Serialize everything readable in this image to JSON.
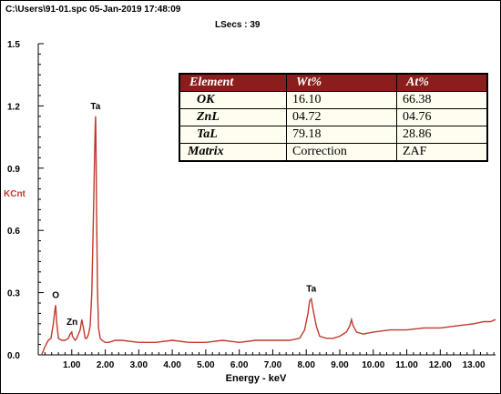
{
  "header": {
    "file_line": "C:\\Users\\91-01.spc  05-Jan-2019 17:48:09",
    "lsecs": "LSecs :  39"
  },
  "table": {
    "headers": [
      "Element",
      "Wt%",
      "At%"
    ],
    "rows": [
      {
        "element": "OK",
        "wt": "16.10",
        "at": "66.38"
      },
      {
        "element": "ZnL",
        "wt": "04.72",
        "at": "04.76"
      },
      {
        "element": "TaL",
        "wt": "79.18",
        "at": "28.86"
      },
      {
        "element": "Matrix",
        "wt": "Correction",
        "at": "ZAF"
      }
    ]
  },
  "chart_data": {
    "type": "line",
    "xlabel": "Energy - keV",
    "ylabel": "KCnt",
    "xlim": [
      0,
      13.65
    ],
    "ylim": [
      0,
      1.5
    ],
    "x_ticks": [
      "1.00",
      "2.00",
      "3.00",
      "4.00",
      "5.00",
      "6.00",
      "7.00",
      "8.00",
      "9.00",
      "10.00",
      "11.00",
      "12.00",
      "13.00"
    ],
    "y_ticks": [
      "0.0",
      "0.3",
      "0.6",
      "0.9",
      "1.2",
      "1.5"
    ],
    "line_color": "#c0392b",
    "peak_labels": [
      {
        "label": "O",
        "x": 0.52,
        "y": 0.24
      },
      {
        "label": "Zn",
        "x": 1.01,
        "y": 0.11
      },
      {
        "label": "Ta",
        "x": 1.71,
        "y": 1.15
      },
      {
        "label": "Ta",
        "x": 8.15,
        "y": 0.27
      }
    ],
    "series": [
      {
        "x": [
          0.1,
          0.2,
          0.3,
          0.38,
          0.45,
          0.5,
          0.52,
          0.55,
          0.6,
          0.7,
          0.8,
          0.9,
          0.95,
          1.0,
          1.02,
          1.06,
          1.1,
          1.15,
          1.2,
          1.25,
          1.3,
          1.35,
          1.4,
          1.45,
          1.5,
          1.55,
          1.6,
          1.65,
          1.68,
          1.7,
          1.71,
          1.72,
          1.74,
          1.77,
          1.8,
          1.85,
          1.9,
          2.0,
          2.1,
          2.3,
          2.5,
          3.0,
          3.5,
          4.0,
          4.5,
          5.0,
          5.5,
          6.0,
          6.5,
          7.0,
          7.5,
          7.8,
          7.95,
          8.05,
          8.1,
          8.15,
          8.2,
          8.3,
          8.4,
          8.6,
          8.8,
          9.0,
          9.2,
          9.3,
          9.35,
          9.4,
          9.5,
          9.7,
          10.0,
          10.5,
          11.0,
          11.5,
          12.0,
          12.5,
          13.0,
          13.3,
          13.5,
          13.65
        ],
        "y": [
          0.0,
          0.04,
          0.07,
          0.08,
          0.15,
          0.22,
          0.24,
          0.16,
          0.08,
          0.07,
          0.07,
          0.08,
          0.1,
          0.11,
          0.09,
          0.08,
          0.07,
          0.08,
          0.1,
          0.12,
          0.17,
          0.13,
          0.08,
          0.08,
          0.1,
          0.14,
          0.3,
          0.7,
          0.95,
          1.1,
          1.15,
          1.05,
          0.7,
          0.3,
          0.13,
          0.08,
          0.07,
          0.06,
          0.06,
          0.07,
          0.07,
          0.06,
          0.06,
          0.07,
          0.06,
          0.06,
          0.07,
          0.06,
          0.07,
          0.07,
          0.07,
          0.08,
          0.12,
          0.2,
          0.26,
          0.27,
          0.22,
          0.14,
          0.09,
          0.08,
          0.08,
          0.09,
          0.11,
          0.14,
          0.17,
          0.14,
          0.11,
          0.1,
          0.11,
          0.12,
          0.12,
          0.13,
          0.13,
          0.14,
          0.15,
          0.16,
          0.16,
          0.17
        ]
      }
    ]
  }
}
